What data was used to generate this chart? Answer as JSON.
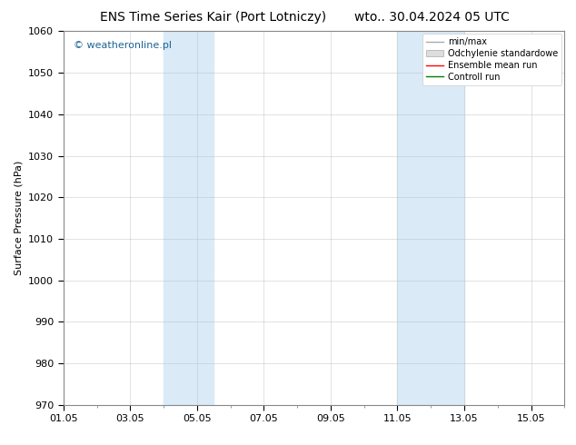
{
  "title_left": "ENS Time Series Kair (Port Lotniczy)",
  "title_right": "wto.. 30.04.2024 05 UTC",
  "ylabel": "Surface Pressure (hPa)",
  "watermark": "© weatheronline.pl",
  "ylim": [
    970,
    1060
  ],
  "yticks": [
    970,
    980,
    990,
    1000,
    1010,
    1020,
    1030,
    1040,
    1050,
    1060
  ],
  "xstart": "2024-05-01",
  "xend": "2024-05-16",
  "xtick_dates": [
    "01.05",
    "03.05",
    "05.05",
    "07.05",
    "09.05",
    "11.05",
    "13.05",
    "15.05"
  ],
  "xtick_days": [
    1,
    3,
    5,
    7,
    9,
    11,
    13,
    15
  ],
  "shaded_bands": [
    {
      "xstart_day": 4.0,
      "xend_day": 5.5
    },
    {
      "xstart_day": 11.0,
      "xend_day": 13.0
    }
  ],
  "shade_color": "#daeaf7",
  "shade_alpha": 1.0,
  "legend_entries": [
    {
      "label": "min/max",
      "color": "#aaaaaa",
      "lw": 1.0
    },
    {
      "label": "Odchylenie standardowe",
      "color": "#dddddd",
      "lw": 6
    },
    {
      "label": "Ensemble mean run",
      "color": "red",
      "lw": 1.0
    },
    {
      "label": "Controll run",
      "color": "green",
      "lw": 1.0
    }
  ],
  "bg_color": "#ffffff",
  "plot_bg_color": "#ffffff",
  "grid_color": "#bbbbbb",
  "grid_alpha": 0.6,
  "title_fontsize": 10,
  "watermark_color": "#1a6496",
  "watermark_fontsize": 8,
  "ylabel_fontsize": 8,
  "tick_fontsize": 8,
  "legend_fontsize": 7
}
